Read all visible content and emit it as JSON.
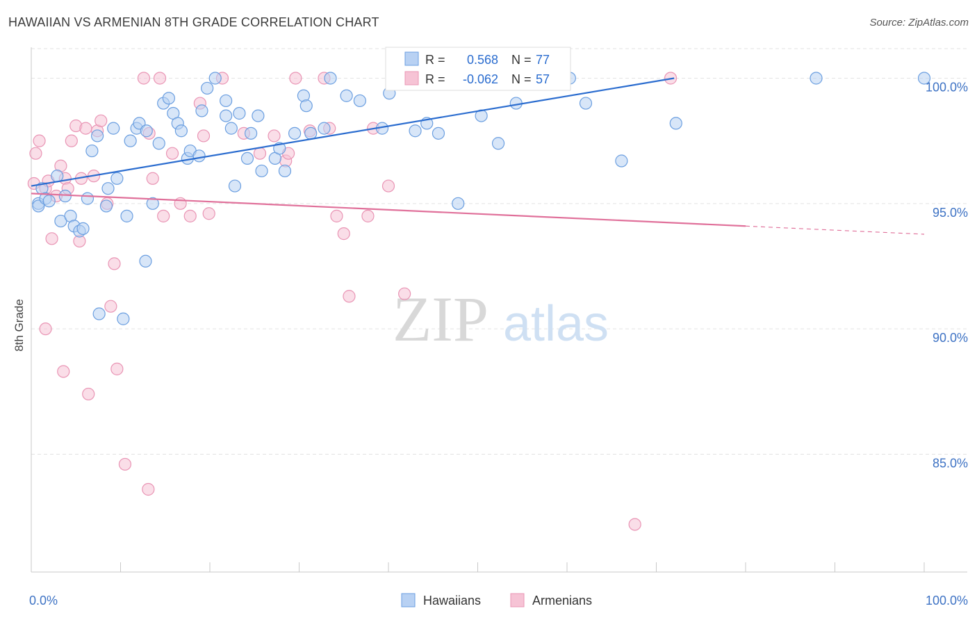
{
  "title": "HAWAIIAN VS ARMENIAN 8TH GRADE CORRELATION CHART",
  "source": "Source: ZipAtlas.com",
  "watermark": {
    "zip": "ZIP",
    "atlas": "atlas"
  },
  "chart_data": {
    "type": "scatter",
    "title": "HAWAIIAN VS ARMENIAN 8TH GRADE CORRELATION CHART",
    "xlabel": "",
    "ylabel": "8th Grade",
    "xlim": [
      0,
      100
    ],
    "ylim": [
      80.3,
      101.4
    ],
    "x_tick_labels": [
      "0.0%",
      "100.0%"
    ],
    "y_ticks": [
      {
        "value": 85,
        "label": "85.0%"
      },
      {
        "value": 90,
        "label": "90.0%"
      },
      {
        "value": 95,
        "label": "95.0%"
      },
      {
        "value": 100,
        "label": "100.0%"
      }
    ],
    "grid": true,
    "legend_position": "bottom",
    "legend_box": [
      {
        "r_label": "R =",
        "r_value": "0.568",
        "n_label": "N =",
        "n_value": "77"
      },
      {
        "r_label": "R =",
        "r_value": "-0.062",
        "n_label": "N =",
        "n_value": "57"
      }
    ],
    "series": [
      {
        "name": "Hawaiians",
        "color": "#6a9ee0",
        "fill": "#b8d1f3",
        "trend_color": "#2a6ccf",
        "trend": {
          "x0": 0,
          "y0": 95.7,
          "x1": 72,
          "y1": 100.0
        },
        "points": [
          [
            0.8,
            95.0
          ],
          [
            0.8,
            94.9
          ],
          [
            1.2,
            95.6
          ],
          [
            1.6,
            95.2
          ],
          [
            2.0,
            95.1
          ],
          [
            2.9,
            96.1
          ],
          [
            3.3,
            94.3
          ],
          [
            3.8,
            95.3
          ],
          [
            4.4,
            94.5
          ],
          [
            4.8,
            94.1
          ],
          [
            5.4,
            93.9
          ],
          [
            5.8,
            94.0
          ],
          [
            6.3,
            95.2
          ],
          [
            6.8,
            97.1
          ],
          [
            7.4,
            97.7
          ],
          [
            8.4,
            94.9
          ],
          [
            8.6,
            95.6
          ],
          [
            9.2,
            98.0
          ],
          [
            9.6,
            96.0
          ],
          [
            10.7,
            94.5
          ],
          [
            11.1,
            97.5
          ],
          [
            11.8,
            98.0
          ],
          [
            12.1,
            98.2
          ],
          [
            12.9,
            97.9
          ],
          [
            13.6,
            95.0
          ],
          [
            14.3,
            97.4
          ],
          [
            14.8,
            99.0
          ],
          [
            15.4,
            99.2
          ],
          [
            15.9,
            98.6
          ],
          [
            16.4,
            98.2
          ],
          [
            16.8,
            97.9
          ],
          [
            17.5,
            96.8
          ],
          [
            17.8,
            97.1
          ],
          [
            18.8,
            96.9
          ],
          [
            19.1,
            98.7
          ],
          [
            19.7,
            99.6
          ],
          [
            20.6,
            100.0
          ],
          [
            21.8,
            99.1
          ],
          [
            21.8,
            98.5
          ],
          [
            22.4,
            98.0
          ],
          [
            22.8,
            95.7
          ],
          [
            23.3,
            98.6
          ],
          [
            24.2,
            96.8
          ],
          [
            24.6,
            97.8
          ],
          [
            25.4,
            98.5
          ],
          [
            25.8,
            96.3
          ],
          [
            27.3,
            96.8
          ],
          [
            27.8,
            97.2
          ],
          [
            28.4,
            96.3
          ],
          [
            29.5,
            97.8
          ],
          [
            30.5,
            99.3
          ],
          [
            30.8,
            98.9
          ],
          [
            31.3,
            97.8
          ],
          [
            32.8,
            98.0
          ],
          [
            33.5,
            100.0
          ],
          [
            35.3,
            99.3
          ],
          [
            36.8,
            99.1
          ],
          [
            39.3,
            98.0
          ],
          [
            40.1,
            99.4
          ],
          [
            43.0,
            97.9
          ],
          [
            44.3,
            98.2
          ],
          [
            45.6,
            97.8
          ],
          [
            47.8,
            95.0
          ],
          [
            49.1,
            100.0
          ],
          [
            50.4,
            98.5
          ],
          [
            52.3,
            97.4
          ],
          [
            53.3,
            100.0
          ],
          [
            54.3,
            99.0
          ],
          [
            56.2,
            100.0
          ],
          [
            60.3,
            100.0
          ],
          [
            62.1,
            99.0
          ],
          [
            66.1,
            96.7
          ],
          [
            72.2,
            98.2
          ],
          [
            7.6,
            90.6
          ],
          [
            10.3,
            90.4
          ],
          [
            12.8,
            92.7
          ],
          [
            87.9,
            100.0
          ],
          [
            100.0,
            100.0
          ]
        ]
      },
      {
        "name": "Armenians",
        "color": "#e994b4",
        "fill": "#f6c3d5",
        "trend_color": "#e0709a",
        "trend": {
          "x0": 0,
          "y0": 95.4,
          "x1": 80,
          "y1": 94.1,
          "dash_to_x": 100
        },
        "points": [
          [
            0.3,
            95.8
          ],
          [
            0.5,
            97.0
          ],
          [
            0.9,
            97.5
          ],
          [
            1.6,
            95.6
          ],
          [
            1.9,
            95.9
          ],
          [
            2.3,
            93.6
          ],
          [
            2.8,
            95.3
          ],
          [
            3.3,
            96.5
          ],
          [
            3.8,
            96.0
          ],
          [
            4.1,
            95.6
          ],
          [
            4.5,
            97.5
          ],
          [
            5.0,
            98.1
          ],
          [
            5.4,
            93.5
          ],
          [
            5.6,
            96.0
          ],
          [
            6.1,
            98.0
          ],
          [
            7.0,
            96.1
          ],
          [
            7.4,
            97.9
          ],
          [
            7.8,
            98.3
          ],
          [
            8.5,
            95.0
          ],
          [
            8.9,
            90.9
          ],
          [
            9.3,
            92.6
          ],
          [
            9.6,
            88.4
          ],
          [
            10.5,
            84.6
          ],
          [
            12.6,
            100.0
          ],
          [
            13.2,
            97.8
          ],
          [
            13.6,
            96.0
          ],
          [
            14.4,
            100.0
          ],
          [
            14.8,
            94.5
          ],
          [
            15.8,
            97.0
          ],
          [
            16.7,
            95.0
          ],
          [
            17.8,
            94.5
          ],
          [
            18.9,
            99.0
          ],
          [
            19.3,
            97.7
          ],
          [
            19.9,
            94.6
          ],
          [
            21.4,
            100.0
          ],
          [
            23.8,
            97.8
          ],
          [
            25.6,
            97.0
          ],
          [
            27.2,
            97.7
          ],
          [
            28.5,
            96.7
          ],
          [
            28.8,
            97.0
          ],
          [
            29.6,
            100.0
          ],
          [
            31.2,
            97.9
          ],
          [
            32.8,
            100.0
          ],
          [
            33.4,
            98.0
          ],
          [
            34.2,
            94.5
          ],
          [
            35.0,
            93.8
          ],
          [
            35.6,
            91.3
          ],
          [
            37.7,
            94.5
          ],
          [
            38.3,
            98.0
          ],
          [
            40.0,
            95.7
          ],
          [
            41.8,
            91.4
          ],
          [
            71.6,
            100.0
          ],
          [
            1.6,
            90.0
          ],
          [
            3.6,
            88.3
          ],
          [
            6.4,
            87.4
          ],
          [
            13.1,
            83.6
          ],
          [
            67.6,
            82.2
          ]
        ]
      }
    ]
  }
}
